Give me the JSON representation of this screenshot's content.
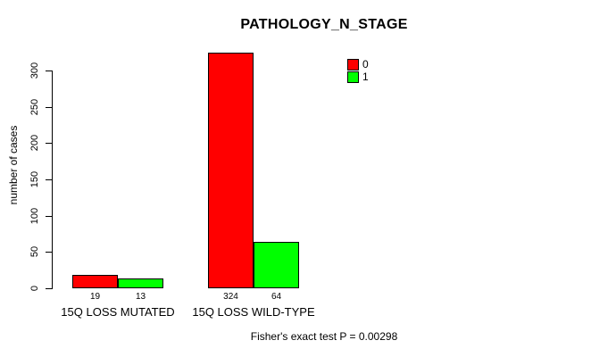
{
  "chart_data": {
    "type": "bar",
    "title": "PATHOLOGY_N_STAGE",
    "ylabel": "number of cases",
    "xlabel": "",
    "categories": [
      "15Q LOSS MUTATED",
      "15Q LOSS WILD-TYPE"
    ],
    "series": [
      {
        "name": "0",
        "color": "#FF0000",
        "values": [
          19,
          324
        ]
      },
      {
        "name": "1",
        "color": "#00FF00",
        "values": [
          13,
          64
        ]
      }
    ],
    "yticks": [
      0,
      50,
      100,
      150,
      200,
      250,
      300
    ],
    "ylim": [
      0,
      330
    ],
    "grid": false,
    "legend_position": "top-right",
    "legend": [
      {
        "label": "0",
        "color": "#FF0000"
      },
      {
        "label": "1",
        "color": "#00FF00"
      }
    ],
    "annotation": "Fisher's exact test P = 0.00298",
    "bar_border_color": "#000000",
    "background_color": "#FFFFFF"
  }
}
